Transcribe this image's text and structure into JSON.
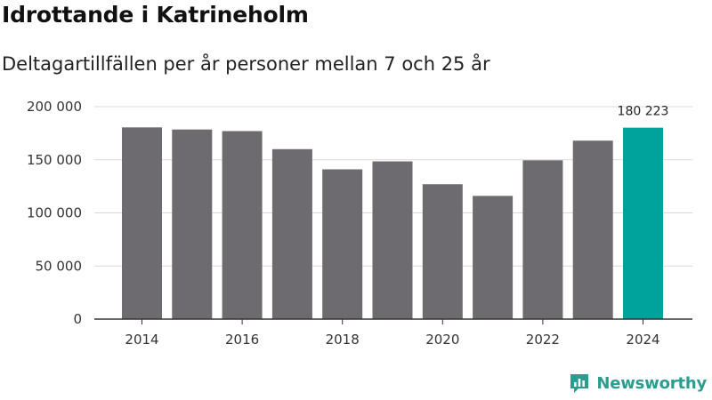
{
  "header": {
    "title": "Idrottande i Katrineholm",
    "subtitle": "Deltagartillfällen per år personer mellan 7 och 25 år"
  },
  "brand": {
    "name": "Newsworthy",
    "color": "#2a9d8f"
  },
  "colors": {
    "bar": "#6d6b70",
    "highlight": "#00a39b",
    "grid": "#d9d9d9",
    "axis": "#333333"
  },
  "chart_data": {
    "type": "bar",
    "title": "Idrottande i Katrineholm",
    "subtitle": "Deltagartillfällen per år personer mellan 7 och 25 år",
    "categories": [
      "2014",
      "2015",
      "2016",
      "2017",
      "2018",
      "2019",
      "2020",
      "2021",
      "2022",
      "2023",
      "2024"
    ],
    "values": [
      180500,
      178500,
      177000,
      160000,
      141000,
      148500,
      127000,
      116000,
      149500,
      168000,
      180223
    ],
    "highlight_index": 10,
    "highlight_label": "180 223",
    "ylim": [
      0,
      200000
    ],
    "yticks": [
      0,
      50000,
      100000,
      150000,
      200000
    ],
    "ytick_labels": [
      "0",
      "50 000",
      "100 000",
      "150 000",
      "200 000"
    ],
    "xtick_labels": [
      "2014",
      "2016",
      "2018",
      "2020",
      "2022",
      "2024"
    ],
    "xtick_indices": [
      0,
      2,
      4,
      6,
      8,
      10
    ],
    "grid": true,
    "xlabel": "",
    "ylabel": ""
  }
}
